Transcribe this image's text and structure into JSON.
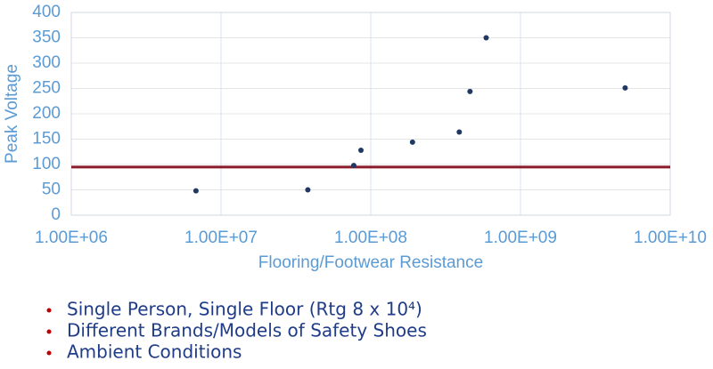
{
  "chart_data": {
    "type": "scatter",
    "x_label": "Flooring/Footwear Resistance",
    "y_label": "Peak Voltage",
    "x": [
      6800000,
      38000000,
      77000000,
      86000000,
      190000000,
      390000000,
      460000000,
      590000000,
      5000000000
    ],
    "values": [
      48,
      50,
      98,
      128,
      144,
      164,
      244,
      350,
      251
    ],
    "color": "#1f3864",
    "xscale": "log",
    "xlim": [
      1000000,
      10000000000
    ],
    "xticks": [
      {
        "value": 1000000,
        "label": "1.00E+06"
      },
      {
        "value": 10000000,
        "label": "1.00E+07"
      },
      {
        "value": 100000000,
        "label": "1.00E+08"
      },
      {
        "value": 1000000000,
        "label": "1.00E+09"
      },
      {
        "value": 10000000000,
        "label": "1.00E+10"
      }
    ],
    "ylim": [
      0,
      400
    ],
    "yticks": [
      0,
      50,
      100,
      150,
      200,
      250,
      300,
      350,
      400
    ],
    "grid": true,
    "hline": {
      "value": 95,
      "color": "#8b1a2b"
    }
  },
  "bullets": [
    "Single Person, Single Floor (Rtg 8 x 10⁴)",
    "Different Brands/Models of Safety Shoes",
    "Ambient Conditions"
  ],
  "bullet_color": "#c00000"
}
